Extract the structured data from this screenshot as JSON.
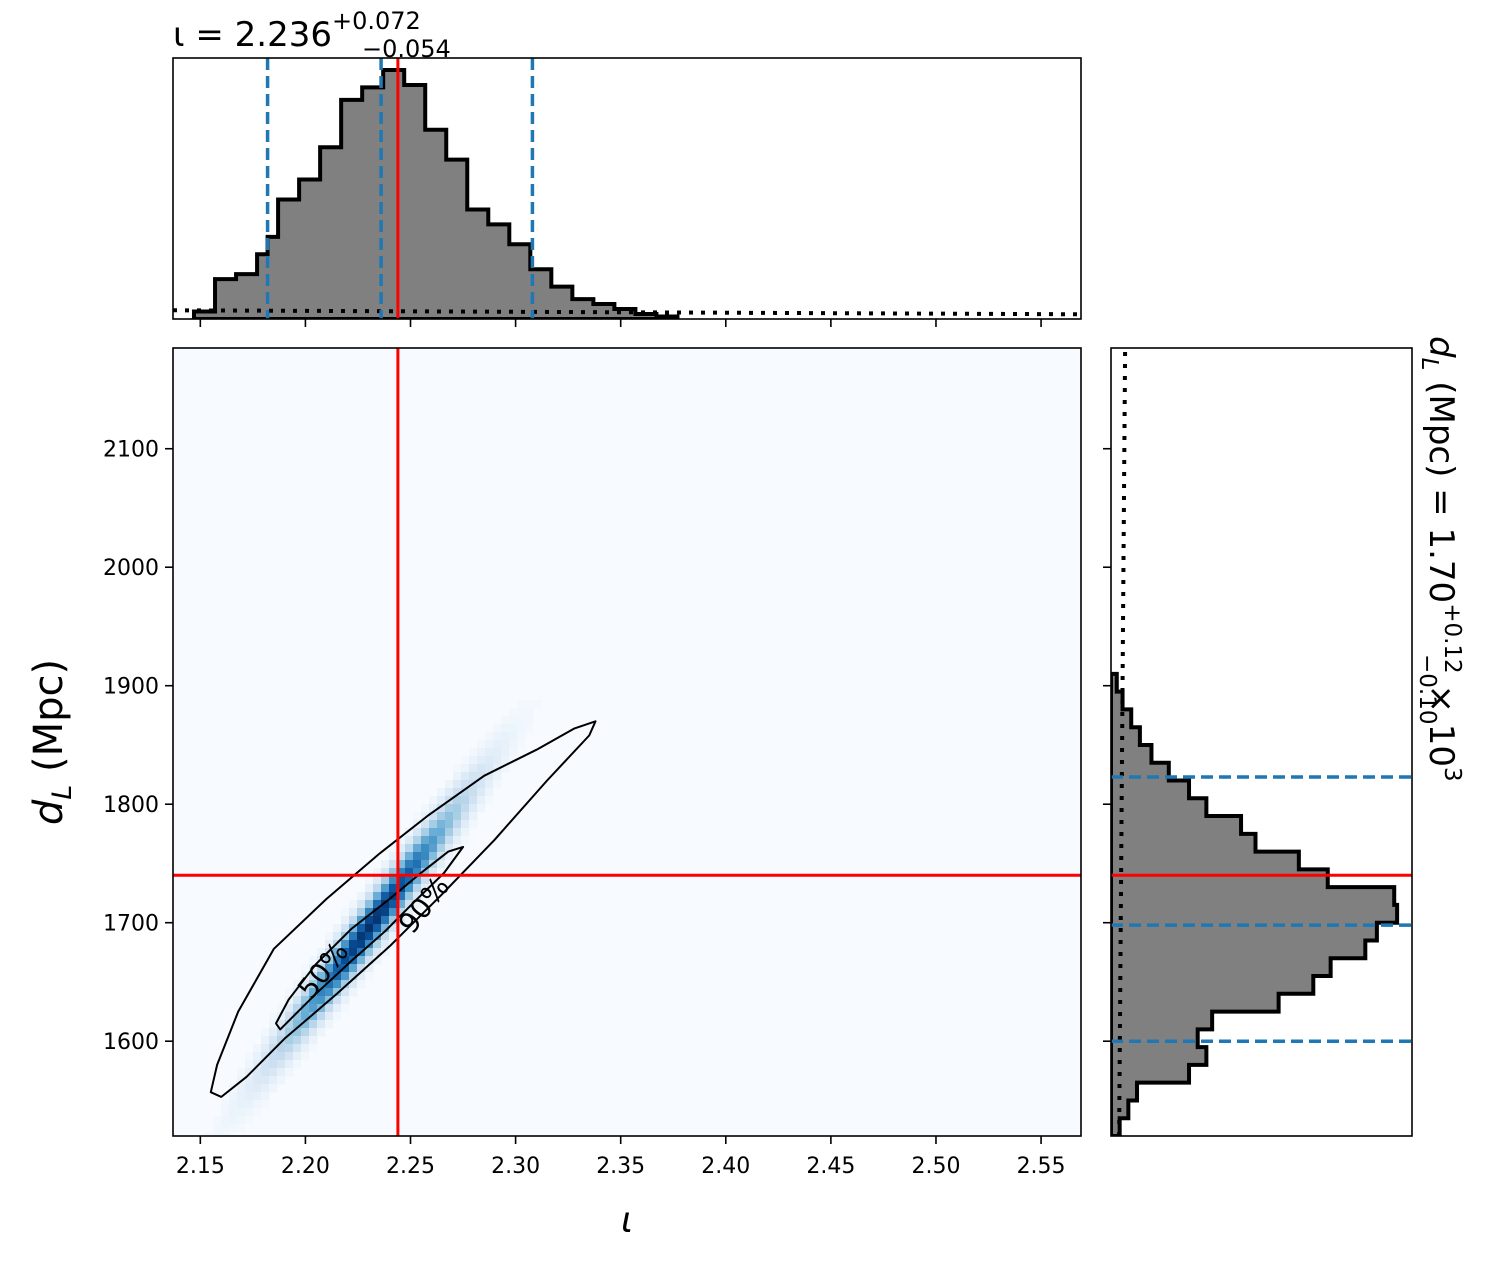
{
  "chart_data": {
    "type": "corner",
    "top_title": {
      "symbol": "ι",
      "equals": " = ",
      "value": "2.236",
      "plus": "+0.072",
      "minus": "−0.054"
    },
    "x_axis": {
      "label": "ι",
      "range": [
        2.137,
        2.569
      ],
      "ticks": [
        2.15,
        2.2,
        2.25,
        2.3,
        2.35,
        2.4,
        2.45,
        2.5,
        2.55
      ],
      "tick_labels": [
        "2.15",
        "2.20",
        "2.25",
        "2.30",
        "2.35",
        "2.40",
        "2.45",
        "2.50",
        "2.55"
      ]
    },
    "y_axis": {
      "label_symbol": "d",
      "label_sub": "L",
      "label_unit": " (Mpc)",
      "range": [
        1520,
        2185
      ],
      "ticks": [
        1600,
        1700,
        1800,
        1900,
        2000,
        2100
      ],
      "tick_labels": [
        "1600",
        "1700",
        "1800",
        "1900",
        "2000",
        "2100"
      ]
    },
    "right_title": {
      "symbol": "d",
      "sub": "L",
      "unit_eq": " (Mpc) = ",
      "value": "1.70",
      "plus": "+0.12",
      "minus": "−0.10",
      "times": " × 10",
      "exponent": "3"
    },
    "injection": {
      "x": 2.244,
      "y": 1740
    },
    "marginal_x": {
      "quantiles": [
        2.182,
        2.236,
        2.308
      ],
      "bin_edges": [
        2.147,
        2.157,
        2.167,
        2.177,
        2.182,
        2.187,
        2.197,
        2.207,
        2.217,
        2.227,
        2.237,
        2.247,
        2.257,
        2.267,
        2.277,
        2.287,
        2.297,
        2.307,
        2.317,
        2.327,
        2.337,
        2.347,
        2.357,
        2.367,
        2.377
      ],
      "heights": [
        0.03,
        0.16,
        0.18,
        0.26,
        0.33,
        0.48,
        0.56,
        0.69,
        0.88,
        0.93,
        1.0,
        0.94,
        0.76,
        0.64,
        0.44,
        0.38,
        0.3,
        0.2,
        0.13,
        0.08,
        0.06,
        0.04,
        0.02,
        0.01
      ],
      "prior_level": 0.035
    },
    "marginal_y": {
      "quantiles": [
        1600,
        1698,
        1823
      ],
      "bin_edges": [
        1520,
        1535,
        1550,
        1565,
        1580,
        1595,
        1610,
        1625,
        1640,
        1655,
        1670,
        1685,
        1700,
        1715,
        1730,
        1745,
        1760,
        1775,
        1790,
        1805,
        1820,
        1835,
        1850,
        1865,
        1880,
        1895,
        1910
      ],
      "heights": [
        0.03,
        0.06,
        0.09,
        0.27,
        0.33,
        0.3,
        0.35,
        0.58,
        0.7,
        0.76,
        0.88,
        0.92,
        0.99,
        0.98,
        0.75,
        0.65,
        0.5,
        0.45,
        0.33,
        0.27,
        0.2,
        0.14,
        0.1,
        0.07,
        0.04,
        0.02
      ],
      "prior_level": 0.035
    },
    "joint": {
      "mean": [
        2.232,
        1700
      ],
      "sigma_x": 0.028,
      "sigma_y": 68,
      "rho": 0.975,
      "contours": [
        {
          "level": "50%",
          "points": [
            [
              2.188,
              1610
            ],
            [
              2.205,
              1640
            ],
            [
              2.222,
              1668
            ],
            [
              2.238,
              1693
            ],
            [
              2.252,
              1718
            ],
            [
              2.266,
              1742
            ],
            [
              2.275,
              1764
            ],
            [
              2.268,
              1760
            ],
            [
              2.255,
              1742
            ],
            [
              2.24,
              1720
            ],
            [
              2.222,
              1695
            ],
            [
              2.205,
              1665
            ],
            [
              2.192,
              1635
            ],
            [
              2.186,
              1615
            ]
          ]
        },
        {
          "level": "90%",
          "points": [
            [
              2.16,
              1553
            ],
            [
              2.172,
              1570
            ],
            [
              2.19,
              1602
            ],
            [
              2.215,
              1640
            ],
            [
              2.24,
              1680
            ],
            [
              2.265,
              1724
            ],
            [
              2.29,
              1770
            ],
            [
              2.315,
              1820
            ],
            [
              2.335,
              1858
            ],
            [
              2.338,
              1870
            ],
            [
              2.328,
              1864
            ],
            [
              2.31,
              1846
            ],
            [
              2.285,
              1824
            ],
            [
              2.258,
              1790
            ],
            [
              2.235,
              1758
            ],
            [
              2.21,
              1720
            ],
            [
              2.185,
              1678
            ],
            [
              2.168,
              1625
            ],
            [
              2.158,
              1580
            ],
            [
              2.155,
              1557
            ]
          ]
        }
      ],
      "contour_labels": [
        {
          "text": "50%",
          "x": 2.212,
          "y": 1655,
          "angle": -52
        },
        {
          "text": "90%",
          "x": 2.26,
          "y": 1710,
          "angle": -52
        }
      ]
    }
  }
}
